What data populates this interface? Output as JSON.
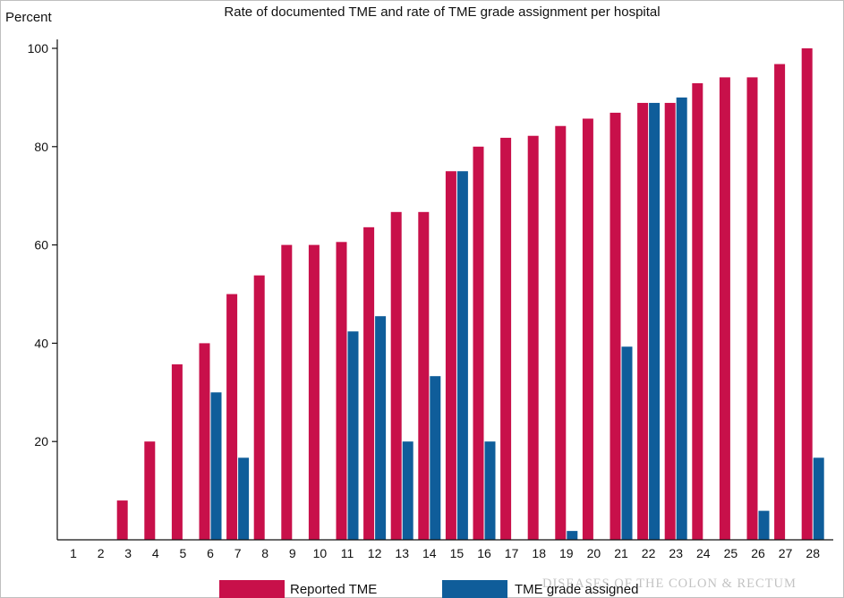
{
  "chart_data": {
    "type": "bar",
    "title": "Rate of documented TME and rate of TME grade assignment per hospital",
    "ylabel": "Percent",
    "xlabel": "",
    "ylim": [
      0,
      100
    ],
    "yticks": [
      20,
      40,
      60,
      80,
      100
    ],
    "categories": [
      "1",
      "2",
      "3",
      "4",
      "5",
      "6",
      "7",
      "8",
      "9",
      "10",
      "11",
      "12",
      "13",
      "14",
      "15",
      "16",
      "17",
      "18",
      "19",
      "20",
      "21",
      "22",
      "23",
      "24",
      "25",
      "26",
      "27",
      "28"
    ],
    "series": [
      {
        "name": "Reported TME",
        "color": "#c8104a",
        "values": [
          0,
          0,
          8,
          20,
          35.7,
          40,
          50,
          53.8,
          60,
          60,
          60.6,
          63.6,
          66.7,
          66.7,
          75,
          80,
          81.8,
          82.2,
          84.2,
          85.7,
          86.9,
          88.9,
          88.9,
          92.9,
          94.1,
          94.1,
          96.8,
          100
        ]
      },
      {
        "name": "TME grade assigned",
        "color": "#0f5d9a",
        "values": [
          0,
          0,
          0,
          0,
          0,
          30,
          16.7,
          0,
          0,
          0,
          42.4,
          45.5,
          20,
          33.3,
          75,
          20,
          0,
          0,
          1.8,
          0,
          39.3,
          88.9,
          90,
          0,
          0,
          5.9,
          0,
          16.7
        ]
      }
    ],
    "legend": "bottom"
  },
  "watermark": "DISEASES OF THE COLON & RECTUM"
}
